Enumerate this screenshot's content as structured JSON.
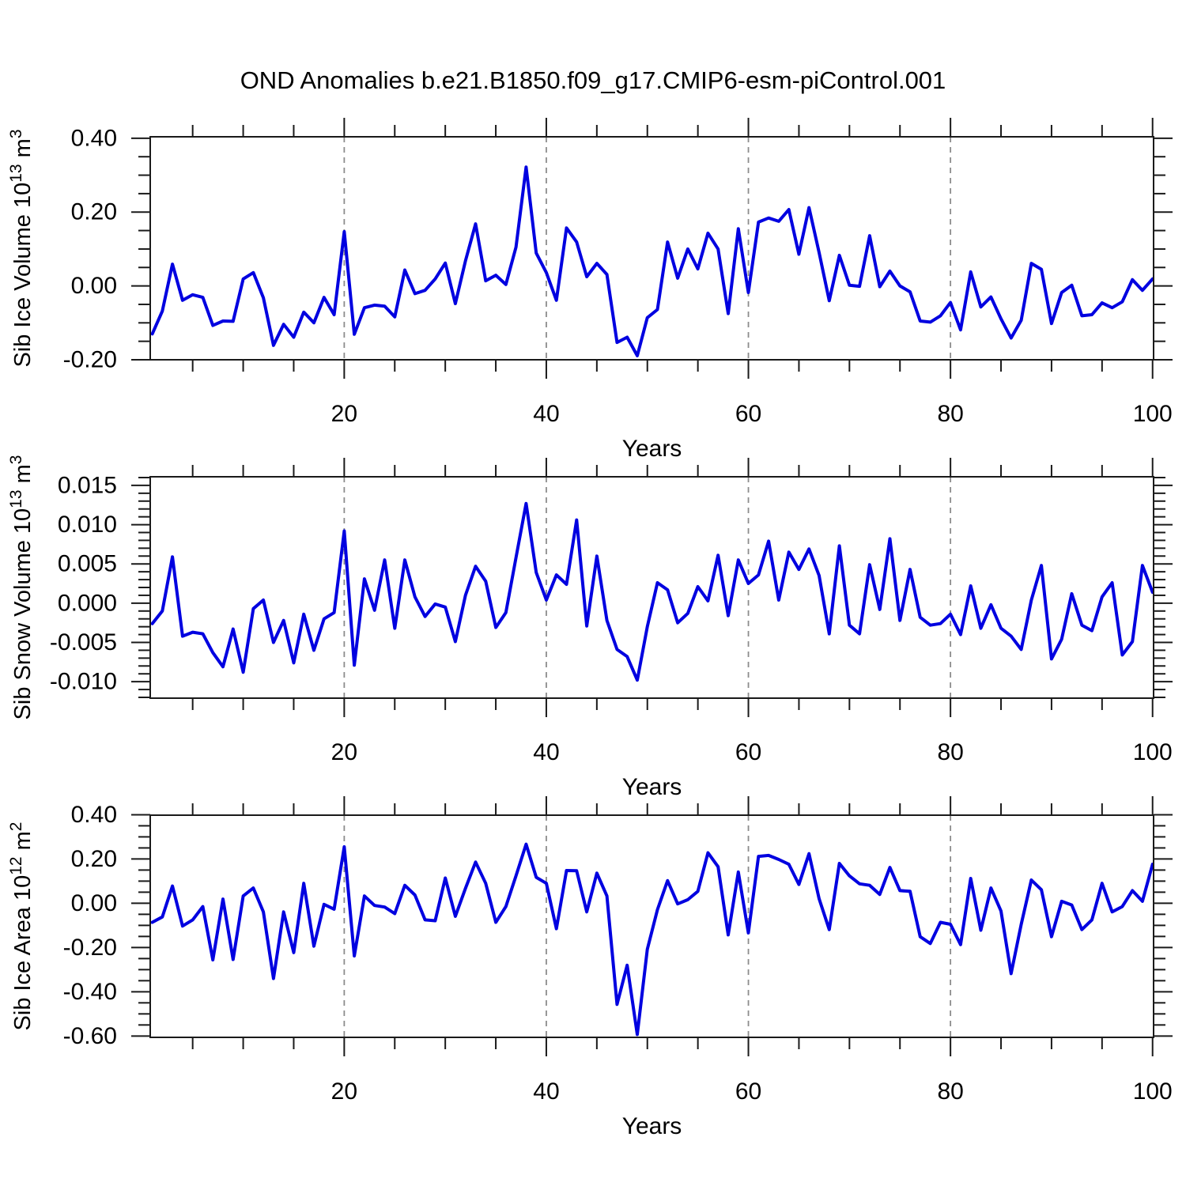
{
  "header": {
    "title": "OND Anomalies b.e21.B1850.f09_g17.CMIP6-esm-piControl.001"
  },
  "chart_data": {
    "type": "line",
    "title": "OND Anomalies b.e21.B1850.f09_g17.CMIP6-esm-piControl.001",
    "series_color": "#0000e0",
    "grid_color": "#8c8c8c",
    "axis_color": "#1a1a1a",
    "x": {
      "start": 1,
      "end": 100,
      "step": 1
    },
    "xlim": [
      0.8,
      100.1
    ],
    "xticks": [
      20,
      40,
      60,
      80,
      100
    ],
    "xtick_labels": [
      "20",
      "40",
      "60",
      "80",
      "100"
    ],
    "xtick_minor_step": 5,
    "gridlines_x": [
      20,
      40,
      60,
      80
    ],
    "panels": [
      {
        "name": "sib-ice-volume",
        "ylabel_parts": [
          [
            "Sib Ice Volume 10",
            false
          ],
          [
            "13",
            true
          ],
          [
            " m",
            false
          ],
          [
            "3",
            true
          ]
        ],
        "xlabel": "Years",
        "ylim": [
          -0.2,
          0.404
        ],
        "yticks": [
          0.4,
          0.2,
          0.0,
          -0.2
        ],
        "ytick_labels": [
          "0.40",
          "0.20",
          "0.00",
          "-0.20"
        ],
        "ytick_minor_step": 0.05,
        "values": [
          -0.13,
          -0.068,
          0.059,
          -0.039,
          -0.024,
          -0.031,
          -0.107,
          -0.095,
          -0.096,
          0.019,
          0.036,
          -0.032,
          -0.161,
          -0.104,
          -0.139,
          -0.071,
          -0.1,
          -0.031,
          -0.078,
          0.147,
          -0.131,
          -0.059,
          -0.052,
          -0.055,
          -0.084,
          0.043,
          -0.021,
          -0.012,
          0.019,
          0.062,
          -0.048,
          0.068,
          0.168,
          0.014,
          0.029,
          0.004,
          0.105,
          0.322,
          0.089,
          0.036,
          -0.039,
          0.157,
          0.119,
          0.025,
          0.061,
          0.031,
          -0.153,
          -0.139,
          -0.189,
          -0.086,
          -0.064,
          0.119,
          0.021,
          0.1,
          0.046,
          0.143,
          0.1,
          -0.075,
          0.155,
          -0.018,
          0.173,
          0.184,
          0.175,
          0.207,
          0.086,
          0.212,
          0.09,
          -0.04,
          0.083,
          0.002,
          -0.001,
          0.136,
          -0.002,
          0.04,
          0.0,
          -0.016,
          -0.095,
          -0.098,
          -0.081,
          -0.045,
          -0.119,
          0.038,
          -0.057,
          -0.03,
          -0.089,
          -0.141,
          -0.093,
          0.061,
          0.045,
          -0.102,
          -0.018,
          0.002,
          -0.081,
          -0.078,
          -0.046,
          -0.059,
          -0.043,
          0.017,
          -0.012,
          0.019
        ]
      },
      {
        "name": "sib-snow-volume",
        "ylabel_parts": [
          [
            "Sib Snow Volume 10",
            false
          ],
          [
            "13",
            true
          ],
          [
            " m",
            false
          ],
          [
            "3",
            true
          ]
        ],
        "xlabel": "Years",
        "ylim": [
          -0.0121,
          0.0161
        ],
        "yticks": [
          0.015,
          0.01,
          0.005,
          0.0,
          -0.005,
          -0.01
        ],
        "ytick_labels": [
          "0.015",
          "0.010",
          "0.005",
          "0.000",
          "-0.005",
          "-0.010"
        ],
        "ytick_minor_step": 0.001,
        "values": [
          -0.0026,
          -0.001,
          0.0059,
          -0.0042,
          -0.0037,
          -0.0039,
          -0.0063,
          -0.0081,
          -0.0033,
          -0.0088,
          -0.0007,
          0.0004,
          -0.005,
          -0.0022,
          -0.0076,
          -0.0014,
          -0.006,
          -0.002,
          -0.0012,
          0.0092,
          -0.0079,
          0.0031,
          -0.0009,
          0.0055,
          -0.0032,
          0.0055,
          0.0008,
          -0.0017,
          -0.0001,
          -0.0005,
          -0.0049,
          0.001,
          0.0047,
          0.0028,
          -0.0031,
          -0.0012,
          0.0058,
          0.0127,
          0.0039,
          0.0004,
          0.0036,
          0.0024,
          0.0106,
          -0.0029,
          0.006,
          -0.0022,
          -0.0059,
          -0.0068,
          -0.0098,
          -0.003,
          0.0026,
          0.0017,
          -0.0025,
          -0.0013,
          0.0021,
          0.0003,
          0.0061,
          -0.0016,
          0.0055,
          0.0025,
          0.0036,
          0.0079,
          0.0004,
          0.0065,
          0.0043,
          0.0069,
          0.0035,
          -0.0039,
          0.0073,
          -0.0028,
          -0.0039,
          0.0049,
          -0.0008,
          0.0082,
          -0.0022,
          0.0043,
          -0.0018,
          -0.0028,
          -0.0026,
          -0.0014,
          -0.004,
          0.0022,
          -0.0032,
          -0.0002,
          -0.0032,
          -0.0042,
          -0.0059,
          0.0004,
          0.0048,
          -0.0071,
          -0.0046,
          0.0012,
          -0.0028,
          -0.0035,
          0.0008,
          0.0026,
          -0.0066,
          -0.0049,
          0.0048,
          0.0014
        ]
      },
      {
        "name": "sib-ice-area",
        "ylabel_parts": [
          [
            "Sib Ice Area 10",
            false
          ],
          [
            "12",
            true
          ],
          [
            " m",
            false
          ],
          [
            "2",
            true
          ]
        ],
        "xlabel": "Years",
        "ylim": [
          -0.606,
          0.398
        ],
        "yticks": [
          0.4,
          0.2,
          0.0,
          -0.2,
          -0.4,
          -0.6
        ],
        "ytick_labels": [
          "0.40",
          "0.20",
          "0.00",
          "-0.20",
          "-0.40",
          "-0.60"
        ],
        "ytick_minor_step": 0.05,
        "values": [
          -0.086,
          -0.062,
          0.078,
          -0.103,
          -0.075,
          -0.015,
          -0.256,
          0.019,
          -0.254,
          0.033,
          0.069,
          -0.039,
          -0.34,
          -0.039,
          -0.223,
          0.09,
          -0.194,
          -0.005,
          -0.027,
          0.255,
          -0.238,
          0.033,
          -0.01,
          -0.017,
          -0.047,
          0.081,
          0.037,
          -0.075,
          -0.079,
          0.114,
          -0.059,
          0.067,
          0.186,
          0.09,
          -0.086,
          -0.015,
          0.124,
          0.267,
          0.117,
          0.09,
          -0.115,
          0.148,
          0.147,
          -0.039,
          0.136,
          0.033,
          -0.457,
          -0.28,
          -0.593,
          -0.208,
          -0.029,
          0.102,
          -0.003,
          0.016,
          0.054,
          0.228,
          0.165,
          -0.143,
          0.141,
          -0.134,
          0.212,
          0.216,
          0.198,
          0.176,
          0.085,
          0.224,
          0.02,
          -0.119,
          0.18,
          0.124,
          0.088,
          0.081,
          0.04,
          0.162,
          0.057,
          0.054,
          -0.151,
          -0.182,
          -0.086,
          -0.095,
          -0.187,
          0.112,
          -0.122,
          0.069,
          -0.035,
          -0.318,
          -0.095,
          0.105,
          0.061,
          -0.151,
          0.009,
          -0.008,
          -0.119,
          -0.075,
          0.09,
          -0.039,
          -0.015,
          0.057,
          0.009,
          0.176
        ]
      }
    ]
  }
}
